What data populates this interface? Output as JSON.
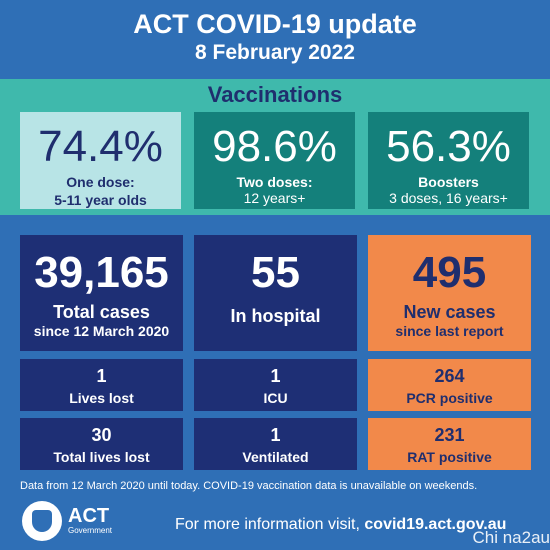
{
  "header": {
    "title": "ACT COVID-19 update",
    "date": "8 February 2022"
  },
  "vaccinations": {
    "heading": "Vaccinations",
    "boxes": [
      {
        "value": "74.4%",
        "label": "One dose:",
        "sublabel": "5-11 year olds"
      },
      {
        "value": "98.6%",
        "label": "Two doses:",
        "sublabel": "12 years+"
      },
      {
        "value": "56.3%",
        "label": "Boosters",
        "sublabel": "3 doses, 16 years+"
      }
    ]
  },
  "cases": {
    "total": {
      "value": "39,165",
      "label": "Total cases",
      "sublabel": "since 12 March 2020"
    },
    "hospital": {
      "value": "55",
      "label": "In hospital"
    },
    "new": {
      "value": "495",
      "label": "New cases",
      "sublabel": "since last report"
    }
  },
  "small_stats": {
    "lives_lost": {
      "value": "1",
      "label": "Lives lost"
    },
    "icu": {
      "value": "1",
      "label": "ICU"
    },
    "pcr": {
      "value": "264",
      "label": "PCR positive"
    },
    "total_lives_lost": {
      "value": "30",
      "label": "Total lives lost"
    },
    "ventilated": {
      "value": "1",
      "label": "Ventilated"
    },
    "rat": {
      "value": "231",
      "label": "RAT positive"
    }
  },
  "footer": {
    "note": "Data from 12 March 2020 until today.  COVID-19 vaccination data is unavailable on weekends.",
    "logo_text": "ACT",
    "logo_sub": "Government",
    "more_prefix": "For more information visit, ",
    "more_link": "covid19.act.gov.au",
    "watermark": "Chi na2au"
  },
  "colors": {
    "background": "#2f6fb6",
    "teal_band": "#3fb9ac",
    "light_teal": "#b8e4e6",
    "dark_teal": "#14807b",
    "navy": "#1e2f75",
    "orange": "#f2894a"
  }
}
